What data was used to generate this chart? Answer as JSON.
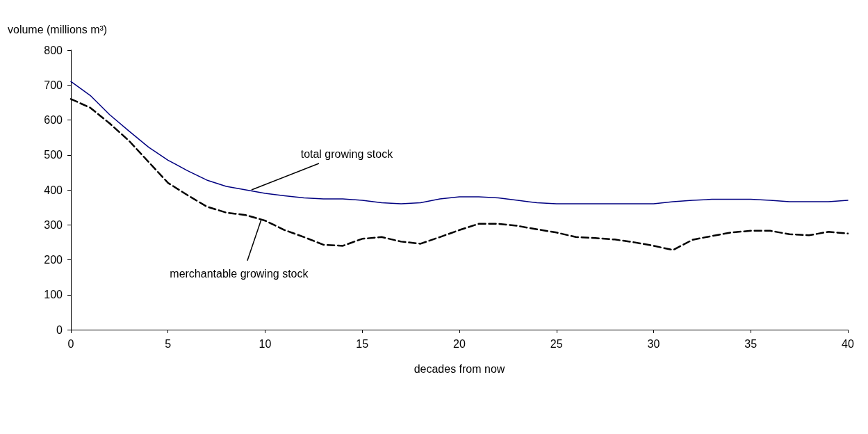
{
  "chart_data": {
    "type": "line",
    "xlabel": "decades from now",
    "ylabel": "volume (millions m³)",
    "x": [
      0,
      1,
      2,
      3,
      4,
      5,
      6,
      7,
      8,
      9,
      10,
      11,
      12,
      13,
      14,
      15,
      16,
      17,
      18,
      19,
      20,
      21,
      22,
      23,
      24,
      25,
      26,
      27,
      28,
      29,
      30,
      31,
      32,
      33,
      34,
      35,
      36,
      37,
      38,
      39,
      40
    ],
    "series": [
      {
        "color": "#000080",
        "line_style": "solid",
        "values": [
          710,
          670,
          615,
          568,
          522,
          485,
          455,
          428,
          410,
          400,
          390,
          383,
          377,
          374,
          374,
          370,
          363,
          360,
          363,
          374,
          380,
          380,
          377,
          370,
          363,
          360,
          360,
          360,
          360,
          360,
          360,
          366,
          370,
          373,
          373,
          373,
          370,
          366,
          366,
          366,
          370
        ]
      },
      {
        "color": "#000000",
        "line_style": "dashed",
        "values": [
          660,
          635,
          590,
          540,
          480,
          420,
          385,
          352,
          335,
          328,
          312,
          285,
          265,
          243,
          240,
          260,
          265,
          252,
          246,
          265,
          285,
          303,
          303,
          297,
          287,
          278,
          265,
          262,
          258,
          250,
          240,
          228,
          257,
          268,
          278,
          283,
          283,
          273,
          270,
          280,
          275
        ]
      }
    ],
    "annotations": [
      {
        "text": "total growing stock",
        "x": 9.3,
        "y": 400
      },
      {
        "text": "merchantable growing stock",
        "x": 9.8,
        "y": 315
      }
    ],
    "xlim": [
      0,
      40
    ],
    "xticks": [
      0,
      5,
      10,
      15,
      20,
      25,
      30,
      35,
      40
    ],
    "ylim": [
      0,
      800
    ],
    "yticks": [
      0,
      100,
      200,
      300,
      400,
      500,
      600,
      700,
      800
    ],
    "grid": false,
    "marker": "none"
  }
}
